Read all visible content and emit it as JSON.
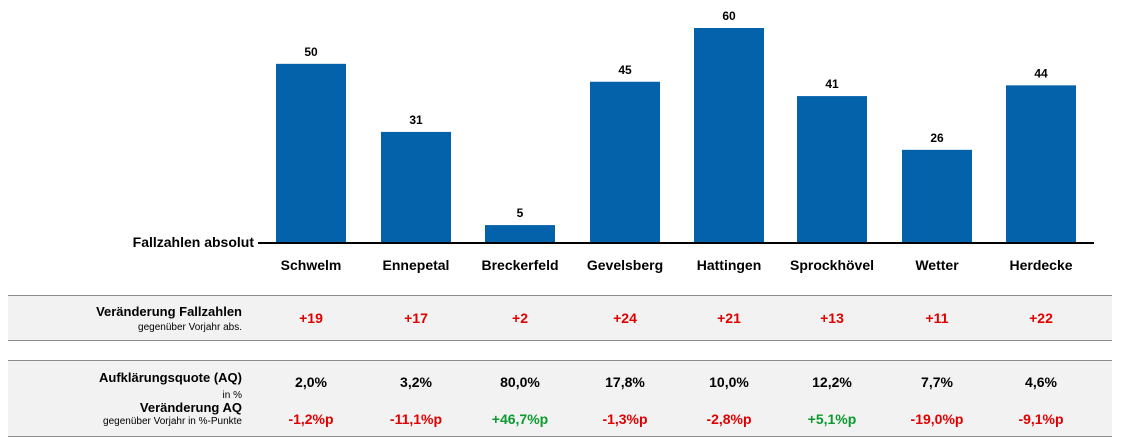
{
  "chart_data": {
    "type": "bar",
    "ylabel": "Fallzahlen absolut",
    "categories": [
      "Schwelm",
      "Ennepetal",
      "Breckerfeld",
      "Gevelsberg",
      "Hattingen",
      "Sprockhövel",
      "Wetter",
      "Herdecke"
    ],
    "values": [
      50,
      31,
      5,
      45,
      60,
      41,
      26,
      44
    ],
    "value_labels": [
      "50",
      "31",
      "5",
      "45",
      "60",
      "41",
      "26",
      "44"
    ],
    "ylim": [
      0,
      60
    ],
    "grid": false,
    "bar_color": "#0462aa"
  },
  "table": {
    "change_cases": {
      "label": "Veränderung Fallzahlen",
      "sublabel": "gegenüber Vorjahr abs.",
      "values": [
        "+19",
        "+17",
        "+2",
        "+24",
        "+21",
        "+13",
        "+11",
        "+22"
      ],
      "colors": [
        "red",
        "red",
        "red",
        "red",
        "red",
        "red",
        "red",
        "red"
      ]
    },
    "clearance_rate": {
      "label": "Aufklärungsquote (AQ)",
      "sublabel": "in %",
      "values": [
        "2,0%",
        "3,2%",
        "80,0%",
        "17,8%",
        "10,0%",
        "12,2%",
        "7,7%",
        "4,6%"
      ]
    },
    "change_rate": {
      "label": "Veränderung AQ",
      "sublabel": "gegenüber Vorjahr in %-Punkte",
      "values": [
        "-1,2%p",
        "-11,1%p",
        "+46,7%p",
        "-1,3%p",
        "-2,8%p",
        "+5,1%p",
        "-19,0%p",
        "-9,1%p"
      ],
      "colors": [
        "red",
        "red",
        "green",
        "red",
        "red",
        "green",
        "red",
        "red"
      ]
    }
  },
  "colors": {
    "red": "#e00000",
    "green": "#0a9a2e",
    "bar": "#0462aa",
    "band": "#f2f2f2"
  }
}
